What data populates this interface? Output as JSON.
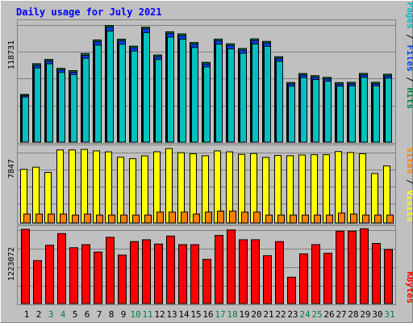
{
  "title": "Daily usage for July 2021",
  "colors": {
    "background": "#c0c0c0",
    "title": "#0000ff",
    "pages": "#00c0c0",
    "files": "#0040ff",
    "hits": "#008040",
    "visits": "#ffff00",
    "sites": "#ff8000",
    "kbytes": "#ff0000",
    "weekend_day_label": "#008040",
    "weekday_day_label": "#000000"
  },
  "labels": {
    "hits_axis_max": "118731",
    "visits_axis_max": "7847",
    "kbytes_axis_max": "1223072",
    "legend_pages": "Pages",
    "legend_files": "Files",
    "legend_hits": "Hits",
    "legend_sites": "Sites",
    "legend_visits": "Visits",
    "legend_kbytes": "KBytes",
    "separator": " / "
  },
  "chart_data": [
    {
      "type": "bar",
      "panel": "hits",
      "categories": [
        "1",
        "2",
        "3",
        "4",
        "5",
        "6",
        "7",
        "8",
        "9",
        "10",
        "11",
        "12",
        "13",
        "14",
        "15",
        "16",
        "17",
        "18",
        "19",
        "20",
        "21",
        "22",
        "23",
        "24",
        "25",
        "26",
        "27",
        "28",
        "29",
        "30",
        "31"
      ],
      "weekend_days": [
        "3",
        "4",
        "10",
        "11",
        "17",
        "18",
        "24",
        "25",
        "31"
      ],
      "ylim": [
        0,
        118731
      ],
      "series": [
        {
          "name": "Hits",
          "values": [
            47100,
            77400,
            81600,
            72800,
            70500,
            87400,
            100800,
            115100,
            101600,
            94700,
            113500,
            86000,
            108900,
            106800,
            98300,
            78700,
            101700,
            97000,
            92400,
            101900,
            99400,
            84300,
            58800,
            67700,
            65600,
            63900,
            58700,
            59000,
            67800,
            59000,
            67000
          ]
        },
        {
          "name": "Files",
          "values": [
            46000,
            75800,
            80000,
            71200,
            69000,
            85600,
            99100,
            113300,
            99900,
            93000,
            111800,
            84300,
            107100,
            105000,
            96600,
            77000,
            100000,
            95300,
            90700,
            100200,
            97700,
            82600,
            57300,
            66100,
            64000,
            62300,
            57200,
            57500,
            66200,
            57500,
            65400
          ]
        },
        {
          "name": "Pages",
          "values": [
            44500,
            73300,
            77300,
            68800,
            66700,
            82800,
            95800,
            109700,
            96600,
            89900,
            108100,
            81500,
            103600,
            101600,
            93400,
            74300,
            96700,
            92100,
            87700,
            96900,
            94500,
            79800,
            55200,
            63800,
            61800,
            60200,
            55200,
            55500,
            64000,
            55500,
            63200
          ]
        }
      ]
    },
    {
      "type": "bar",
      "panel": "visits",
      "categories": [
        "1",
        "2",
        "3",
        "4",
        "5",
        "6",
        "7",
        "8",
        "9",
        "10",
        "11",
        "12",
        "13",
        "14",
        "15",
        "16",
        "17",
        "18",
        "19",
        "20",
        "21",
        "22",
        "23",
        "24",
        "25",
        "26",
        "27",
        "28",
        "29",
        "30",
        "31"
      ],
      "ylim": [
        0,
        7847
      ],
      "series": [
        {
          "name": "Visits",
          "values": [
            5470,
            5690,
            5150,
            7460,
            7460,
            7510,
            7360,
            7260,
            6710,
            6560,
            6850,
            7270,
            7600,
            7170,
            7070,
            6860,
            7360,
            7260,
            7000,
            7090,
            6690,
            6890,
            6860,
            6940,
            6970,
            6970,
            7290,
            7190,
            7070,
            5040,
            5820
          ]
        },
        {
          "name": "Sites",
          "values": [
            900,
            900,
            900,
            900,
            800,
            900,
            800,
            800,
            800,
            800,
            800,
            1100,
            1100,
            1100,
            900,
            1100,
            1200,
            1200,
            1100,
            1100,
            800,
            800,
            800,
            800,
            800,
            800,
            1000,
            900,
            800,
            800,
            800
          ]
        }
      ]
    },
    {
      "type": "bar",
      "panel": "kbytes",
      "categories": [
        "1",
        "2",
        "3",
        "4",
        "5",
        "6",
        "7",
        "8",
        "9",
        "10",
        "11",
        "12",
        "13",
        "14",
        "15",
        "16",
        "17",
        "18",
        "19",
        "20",
        "21",
        "22",
        "23",
        "24",
        "25",
        "26",
        "27",
        "28",
        "29",
        "30",
        "31"
      ],
      "ylim": [
        0,
        1223072
      ],
      "series": [
        {
          "name": "KBytes",
          "values": [
            1210000,
            700000,
            950000,
            1140000,
            910000,
            960000,
            840000,
            1080000,
            790000,
            1010000,
            1040000,
            970000,
            1100000,
            960000,
            960000,
            720000,
            1110000,
            1200000,
            1040000,
            1040000,
            780000,
            1010000,
            430000,
            810000,
            960000,
            820000,
            1180000,
            1180000,
            1220000,
            980000,
            880000
          ]
        }
      ]
    }
  ]
}
